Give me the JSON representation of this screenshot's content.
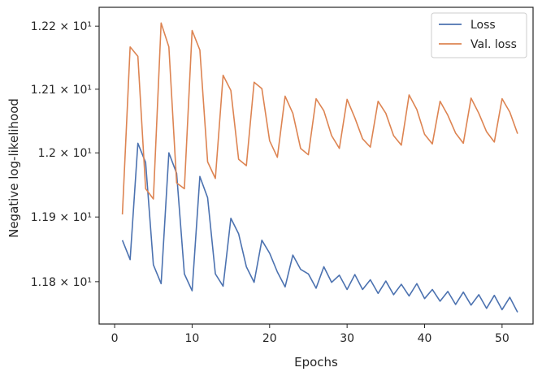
{
  "chart_data": {
    "type": "line",
    "xlabel": "Epochs",
    "ylabel": "Negative log-likelihood",
    "y_scale": "log",
    "xlim": [
      -2,
      54
    ],
    "ylim": [
      11.735,
      12.23
    ],
    "x_ticks": [
      0,
      10,
      20,
      30,
      40,
      50
    ],
    "y_ticks": [
      {
        "value": 11.8,
        "label": "1.18 × 10¹"
      },
      {
        "value": 11.9,
        "label": "1.19 × 10¹"
      },
      {
        "value": 12.0,
        "label": "1.2 × 10¹"
      },
      {
        "value": 12.1,
        "label": "1.21 × 10¹"
      },
      {
        "value": 12.2,
        "label": "1.22 × 10¹"
      }
    ],
    "grid": false,
    "legend_position": "top-right",
    "x": [
      1,
      2,
      3,
      4,
      5,
      6,
      7,
      8,
      9,
      10,
      11,
      12,
      13,
      14,
      15,
      16,
      17,
      18,
      19,
      20,
      21,
      22,
      23,
      24,
      25,
      26,
      27,
      28,
      29,
      30,
      31,
      32,
      33,
      34,
      35,
      36,
      37,
      38,
      39,
      40,
      41,
      42,
      43,
      44,
      45,
      46,
      47,
      48,
      49,
      50,
      51,
      52
    ],
    "series": [
      {
        "name": "Loss",
        "color": "#4c72b0",
        "values": [
          11.864,
          11.834,
          12.015,
          11.985,
          11.826,
          11.797,
          12.0,
          11.968,
          11.812,
          11.786,
          11.963,
          11.93,
          11.812,
          11.793,
          11.898,
          11.874,
          11.823,
          11.799,
          11.864,
          11.844,
          11.815,
          11.792,
          11.841,
          11.819,
          11.812,
          11.79,
          11.823,
          11.799,
          11.81,
          11.788,
          11.811,
          11.788,
          11.803,
          11.782,
          11.801,
          11.78,
          11.796,
          11.778,
          11.797,
          11.774,
          11.788,
          11.77,
          11.785,
          11.765,
          11.784,
          11.764,
          11.78,
          11.759,
          11.779,
          11.757,
          11.776,
          11.753
        ]
      },
      {
        "name": "Val. loss",
        "color": "#dd8452",
        "values": [
          11.904,
          12.167,
          12.152,
          11.944,
          11.928,
          12.205,
          12.167,
          11.953,
          11.944,
          12.193,
          12.162,
          11.986,
          11.96,
          12.122,
          12.098,
          11.99,
          11.98,
          12.111,
          12.101,
          12.019,
          11.993,
          12.089,
          12.062,
          12.007,
          11.997,
          12.085,
          12.066,
          12.027,
          12.007,
          12.084,
          12.055,
          12.022,
          12.009,
          12.081,
          12.062,
          12.027,
          12.012,
          12.091,
          12.068,
          12.029,
          12.014,
          12.081,
          12.059,
          12.031,
          12.015,
          12.086,
          12.062,
          12.033,
          12.017,
          12.085,
          12.064,
          12.03
        ]
      }
    ]
  }
}
